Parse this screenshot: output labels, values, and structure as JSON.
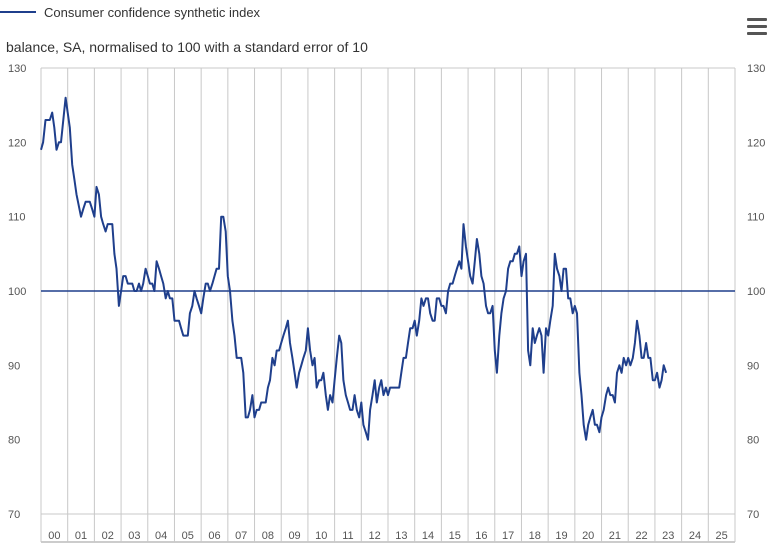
{
  "chart_data": {
    "type": "line",
    "subtitle": "balance, SA, normalised to 100 with a standard error of 10",
    "ylim": [
      70,
      130
    ],
    "y_ticks": [
      70,
      80,
      90,
      100,
      110,
      120,
      130
    ],
    "x_ticks": [
      "00",
      "01",
      "02",
      "03",
      "04",
      "05",
      "06",
      "07",
      "08",
      "09",
      "10",
      "11",
      "12",
      "13",
      "14",
      "15",
      "16",
      "17",
      "18",
      "19",
      "20",
      "21",
      "22",
      "23",
      "24",
      "25"
    ],
    "x_unit": "year (2000–2025, annual ticks, monthly data)",
    "grid": "vertical lines at each year",
    "reference_line": 100,
    "legend_position": "top-left",
    "series": [
      {
        "name": "Consumer confidence synthetic index",
        "color": "#1f3f8c",
        "points": [
          [
            2000.0,
            119
          ],
          [
            2000.08,
            120
          ],
          [
            2000.17,
            123
          ],
          [
            2000.33,
            123
          ],
          [
            2000.42,
            124
          ],
          [
            2000.5,
            122
          ],
          [
            2000.58,
            119
          ],
          [
            2000.67,
            120
          ],
          [
            2000.75,
            120
          ],
          [
            2000.92,
            126
          ],
          [
            2001.0,
            124
          ],
          [
            2001.08,
            122
          ],
          [
            2001.17,
            117
          ],
          [
            2001.25,
            115
          ],
          [
            2001.33,
            113
          ],
          [
            2001.5,
            110
          ],
          [
            2001.58,
            111
          ],
          [
            2001.67,
            112
          ],
          [
            2001.83,
            112
          ],
          [
            2001.92,
            111
          ],
          [
            2002.0,
            110
          ],
          [
            2002.08,
            114
          ],
          [
            2002.17,
            113
          ],
          [
            2002.25,
            110
          ],
          [
            2002.33,
            109
          ],
          [
            2002.42,
            108
          ],
          [
            2002.5,
            109
          ],
          [
            2002.67,
            109
          ],
          [
            2002.75,
            105
          ],
          [
            2002.83,
            103
          ],
          [
            2002.92,
            98
          ],
          [
            2003.0,
            100
          ],
          [
            2003.08,
            102
          ],
          [
            2003.17,
            102
          ],
          [
            2003.25,
            101
          ],
          [
            2003.42,
            101
          ],
          [
            2003.5,
            100
          ],
          [
            2003.58,
            100
          ],
          [
            2003.67,
            101
          ],
          [
            2003.75,
            100
          ],
          [
            2003.83,
            101
          ],
          [
            2003.92,
            103
          ],
          [
            2004.0,
            102
          ],
          [
            2004.08,
            101
          ],
          [
            2004.17,
            101
          ],
          [
            2004.25,
            100
          ],
          [
            2004.33,
            104
          ],
          [
            2004.42,
            103
          ],
          [
            2004.5,
            102
          ],
          [
            2004.58,
            101
          ],
          [
            2004.67,
            99
          ],
          [
            2004.75,
            100
          ],
          [
            2004.83,
            99
          ],
          [
            2004.92,
            99
          ],
          [
            2005.0,
            96
          ],
          [
            2005.08,
            96
          ],
          [
            2005.17,
            96
          ],
          [
            2005.25,
            95
          ],
          [
            2005.33,
            94
          ],
          [
            2005.5,
            94
          ],
          [
            2005.58,
            97
          ],
          [
            2005.67,
            98
          ],
          [
            2005.75,
            100
          ],
          [
            2005.83,
            99
          ],
          [
            2005.92,
            98
          ],
          [
            2006.0,
            97
          ],
          [
            2006.08,
            99
          ],
          [
            2006.17,
            101
          ],
          [
            2006.25,
            101
          ],
          [
            2006.33,
            100
          ],
          [
            2006.42,
            101
          ],
          [
            2006.5,
            102
          ],
          [
            2006.58,
            103
          ],
          [
            2006.67,
            103
          ],
          [
            2006.75,
            110
          ],
          [
            2006.83,
            110
          ],
          [
            2006.92,
            108
          ],
          [
            2007.0,
            102
          ],
          [
            2007.08,
            100
          ],
          [
            2007.17,
            96
          ],
          [
            2007.25,
            94
          ],
          [
            2007.33,
            91
          ],
          [
            2007.5,
            91
          ],
          [
            2007.58,
            89
          ],
          [
            2007.67,
            83
          ],
          [
            2007.75,
            83
          ],
          [
            2007.83,
            84
          ],
          [
            2007.92,
            86
          ],
          [
            2008.0,
            83
          ],
          [
            2008.08,
            84
          ],
          [
            2008.17,
            84
          ],
          [
            2008.25,
            85
          ],
          [
            2008.33,
            85
          ],
          [
            2008.42,
            85
          ],
          [
            2008.5,
            87
          ],
          [
            2008.58,
            88
          ],
          [
            2008.67,
            91
          ],
          [
            2008.75,
            90
          ],
          [
            2008.83,
            92
          ],
          [
            2008.92,
            92
          ],
          [
            2009.0,
            93
          ],
          [
            2009.08,
            94
          ],
          [
            2009.17,
            95
          ],
          [
            2009.25,
            96
          ],
          [
            2009.33,
            93
          ],
          [
            2009.42,
            91
          ],
          [
            2009.5,
            89
          ],
          [
            2009.58,
            87
          ],
          [
            2009.67,
            89
          ],
          [
            2009.75,
            90
          ],
          [
            2009.83,
            91
          ],
          [
            2009.92,
            92
          ],
          [
            2010.0,
            95
          ],
          [
            2010.08,
            92
          ],
          [
            2010.17,
            90
          ],
          [
            2010.25,
            91
          ],
          [
            2010.33,
            87
          ],
          [
            2010.42,
            88
          ],
          [
            2010.5,
            88
          ],
          [
            2010.58,
            89
          ],
          [
            2010.67,
            86
          ],
          [
            2010.75,
            84
          ],
          [
            2010.83,
            86
          ],
          [
            2010.92,
            85
          ],
          [
            2011.0,
            88
          ],
          [
            2011.08,
            91
          ],
          [
            2011.17,
            94
          ],
          [
            2011.25,
            93
          ],
          [
            2011.33,
            88
          ],
          [
            2011.42,
            86
          ],
          [
            2011.5,
            85
          ],
          [
            2011.58,
            84
          ],
          [
            2011.67,
            84
          ],
          [
            2011.75,
            86
          ],
          [
            2011.83,
            84
          ],
          [
            2011.92,
            83
          ],
          [
            2012.0,
            85
          ],
          [
            2012.08,
            82
          ],
          [
            2012.17,
            81
          ],
          [
            2012.25,
            80
          ],
          [
            2012.33,
            84
          ],
          [
            2012.42,
            86
          ],
          [
            2012.5,
            88
          ],
          [
            2012.58,
            85
          ],
          [
            2012.67,
            87
          ],
          [
            2012.75,
            88
          ],
          [
            2012.83,
            86
          ],
          [
            2012.92,
            87
          ],
          [
            2013.0,
            86
          ],
          [
            2013.08,
            87
          ],
          [
            2013.17,
            87
          ],
          [
            2013.33,
            87
          ],
          [
            2013.42,
            87
          ],
          [
            2013.5,
            89
          ],
          [
            2013.58,
            91
          ],
          [
            2013.67,
            91
          ],
          [
            2013.75,
            93
          ],
          [
            2013.83,
            95
          ],
          [
            2013.92,
            95
          ],
          [
            2014.0,
            96
          ],
          [
            2014.08,
            94
          ],
          [
            2014.17,
            96
          ],
          [
            2014.25,
            99
          ],
          [
            2014.33,
            98
          ],
          [
            2014.42,
            99
          ],
          [
            2014.5,
            99
          ],
          [
            2014.58,
            97
          ],
          [
            2014.67,
            96
          ],
          [
            2014.75,
            96
          ],
          [
            2014.83,
            99
          ],
          [
            2014.92,
            99
          ],
          [
            2015.0,
            98
          ],
          [
            2015.08,
            98
          ],
          [
            2015.17,
            97
          ],
          [
            2015.25,
            100
          ],
          [
            2015.33,
            101
          ],
          [
            2015.42,
            101
          ],
          [
            2015.5,
            102
          ],
          [
            2015.58,
            103
          ],
          [
            2015.67,
            104
          ],
          [
            2015.75,
            103
          ],
          [
            2015.83,
            109
          ],
          [
            2015.92,
            106
          ],
          [
            2016.0,
            104
          ],
          [
            2016.08,
            102
          ],
          [
            2016.17,
            101
          ],
          [
            2016.25,
            104
          ],
          [
            2016.33,
            107
          ],
          [
            2016.42,
            105
          ],
          [
            2016.5,
            102
          ],
          [
            2016.58,
            101
          ],
          [
            2016.67,
            98
          ],
          [
            2016.75,
            97
          ],
          [
            2016.83,
            97
          ],
          [
            2016.92,
            98
          ],
          [
            2017.0,
            92
          ],
          [
            2017.08,
            89
          ],
          [
            2017.17,
            94
          ],
          [
            2017.25,
            97
          ],
          [
            2017.33,
            99
          ],
          [
            2017.42,
            100
          ],
          [
            2017.5,
            103
          ],
          [
            2017.58,
            104
          ],
          [
            2017.67,
            104
          ],
          [
            2017.75,
            105
          ],
          [
            2017.83,
            105
          ],
          [
            2017.92,
            106
          ],
          [
            2018.0,
            102
          ],
          [
            2018.08,
            104
          ],
          [
            2018.17,
            105
          ],
          [
            2018.25,
            92
          ],
          [
            2018.33,
            90
          ],
          [
            2018.42,
            95
          ],
          [
            2018.5,
            93
          ],
          [
            2018.58,
            94
          ],
          [
            2018.67,
            95
          ],
          [
            2018.75,
            94
          ],
          [
            2018.83,
            89
          ],
          [
            2018.92,
            95
          ],
          [
            2019.0,
            94
          ],
          [
            2019.08,
            96
          ],
          [
            2019.17,
            98
          ],
          [
            2019.25,
            105
          ],
          [
            2019.33,
            103
          ],
          [
            2019.42,
            102
          ],
          [
            2019.5,
            100
          ],
          [
            2019.58,
            103
          ],
          [
            2019.67,
            103
          ],
          [
            2019.75,
            99
          ],
          [
            2019.83,
            99
          ],
          [
            2019.92,
            97
          ],
          [
            2020.0,
            98
          ],
          [
            2020.08,
            97
          ],
          [
            2020.17,
            89
          ],
          [
            2020.25,
            86
          ],
          [
            2020.33,
            82
          ],
          [
            2020.42,
            80
          ],
          [
            2020.5,
            82
          ],
          [
            2020.58,
            83
          ],
          [
            2020.67,
            84
          ],
          [
            2020.75,
            82
          ],
          [
            2020.83,
            82
          ],
          [
            2020.92,
            81
          ],
          [
            2021.0,
            83
          ],
          [
            2021.08,
            84
          ],
          [
            2021.17,
            86
          ],
          [
            2021.25,
            87
          ],
          [
            2021.33,
            86
          ],
          [
            2021.42,
            86
          ],
          [
            2021.5,
            85
          ],
          [
            2021.58,
            89
          ],
          [
            2021.67,
            90
          ],
          [
            2021.75,
            89
          ],
          [
            2021.83,
            91
          ],
          [
            2021.92,
            90
          ],
          [
            2022.0,
            91
          ],
          [
            2022.08,
            90
          ],
          [
            2022.17,
            91
          ],
          [
            2022.25,
            93
          ],
          [
            2022.33,
            96
          ],
          [
            2022.42,
            94
          ],
          [
            2022.5,
            91
          ],
          [
            2022.58,
            91
          ],
          [
            2022.67,
            93
          ],
          [
            2022.75,
            91
          ],
          [
            2022.83,
            91
          ],
          [
            2022.92,
            88
          ],
          [
            2023.0,
            88
          ],
          [
            2023.08,
            89
          ],
          [
            2023.17,
            87
          ],
          [
            2023.25,
            88
          ],
          [
            2023.33,
            90
          ],
          [
            2023.42,
            89
          ]
        ]
      }
    ]
  }
}
